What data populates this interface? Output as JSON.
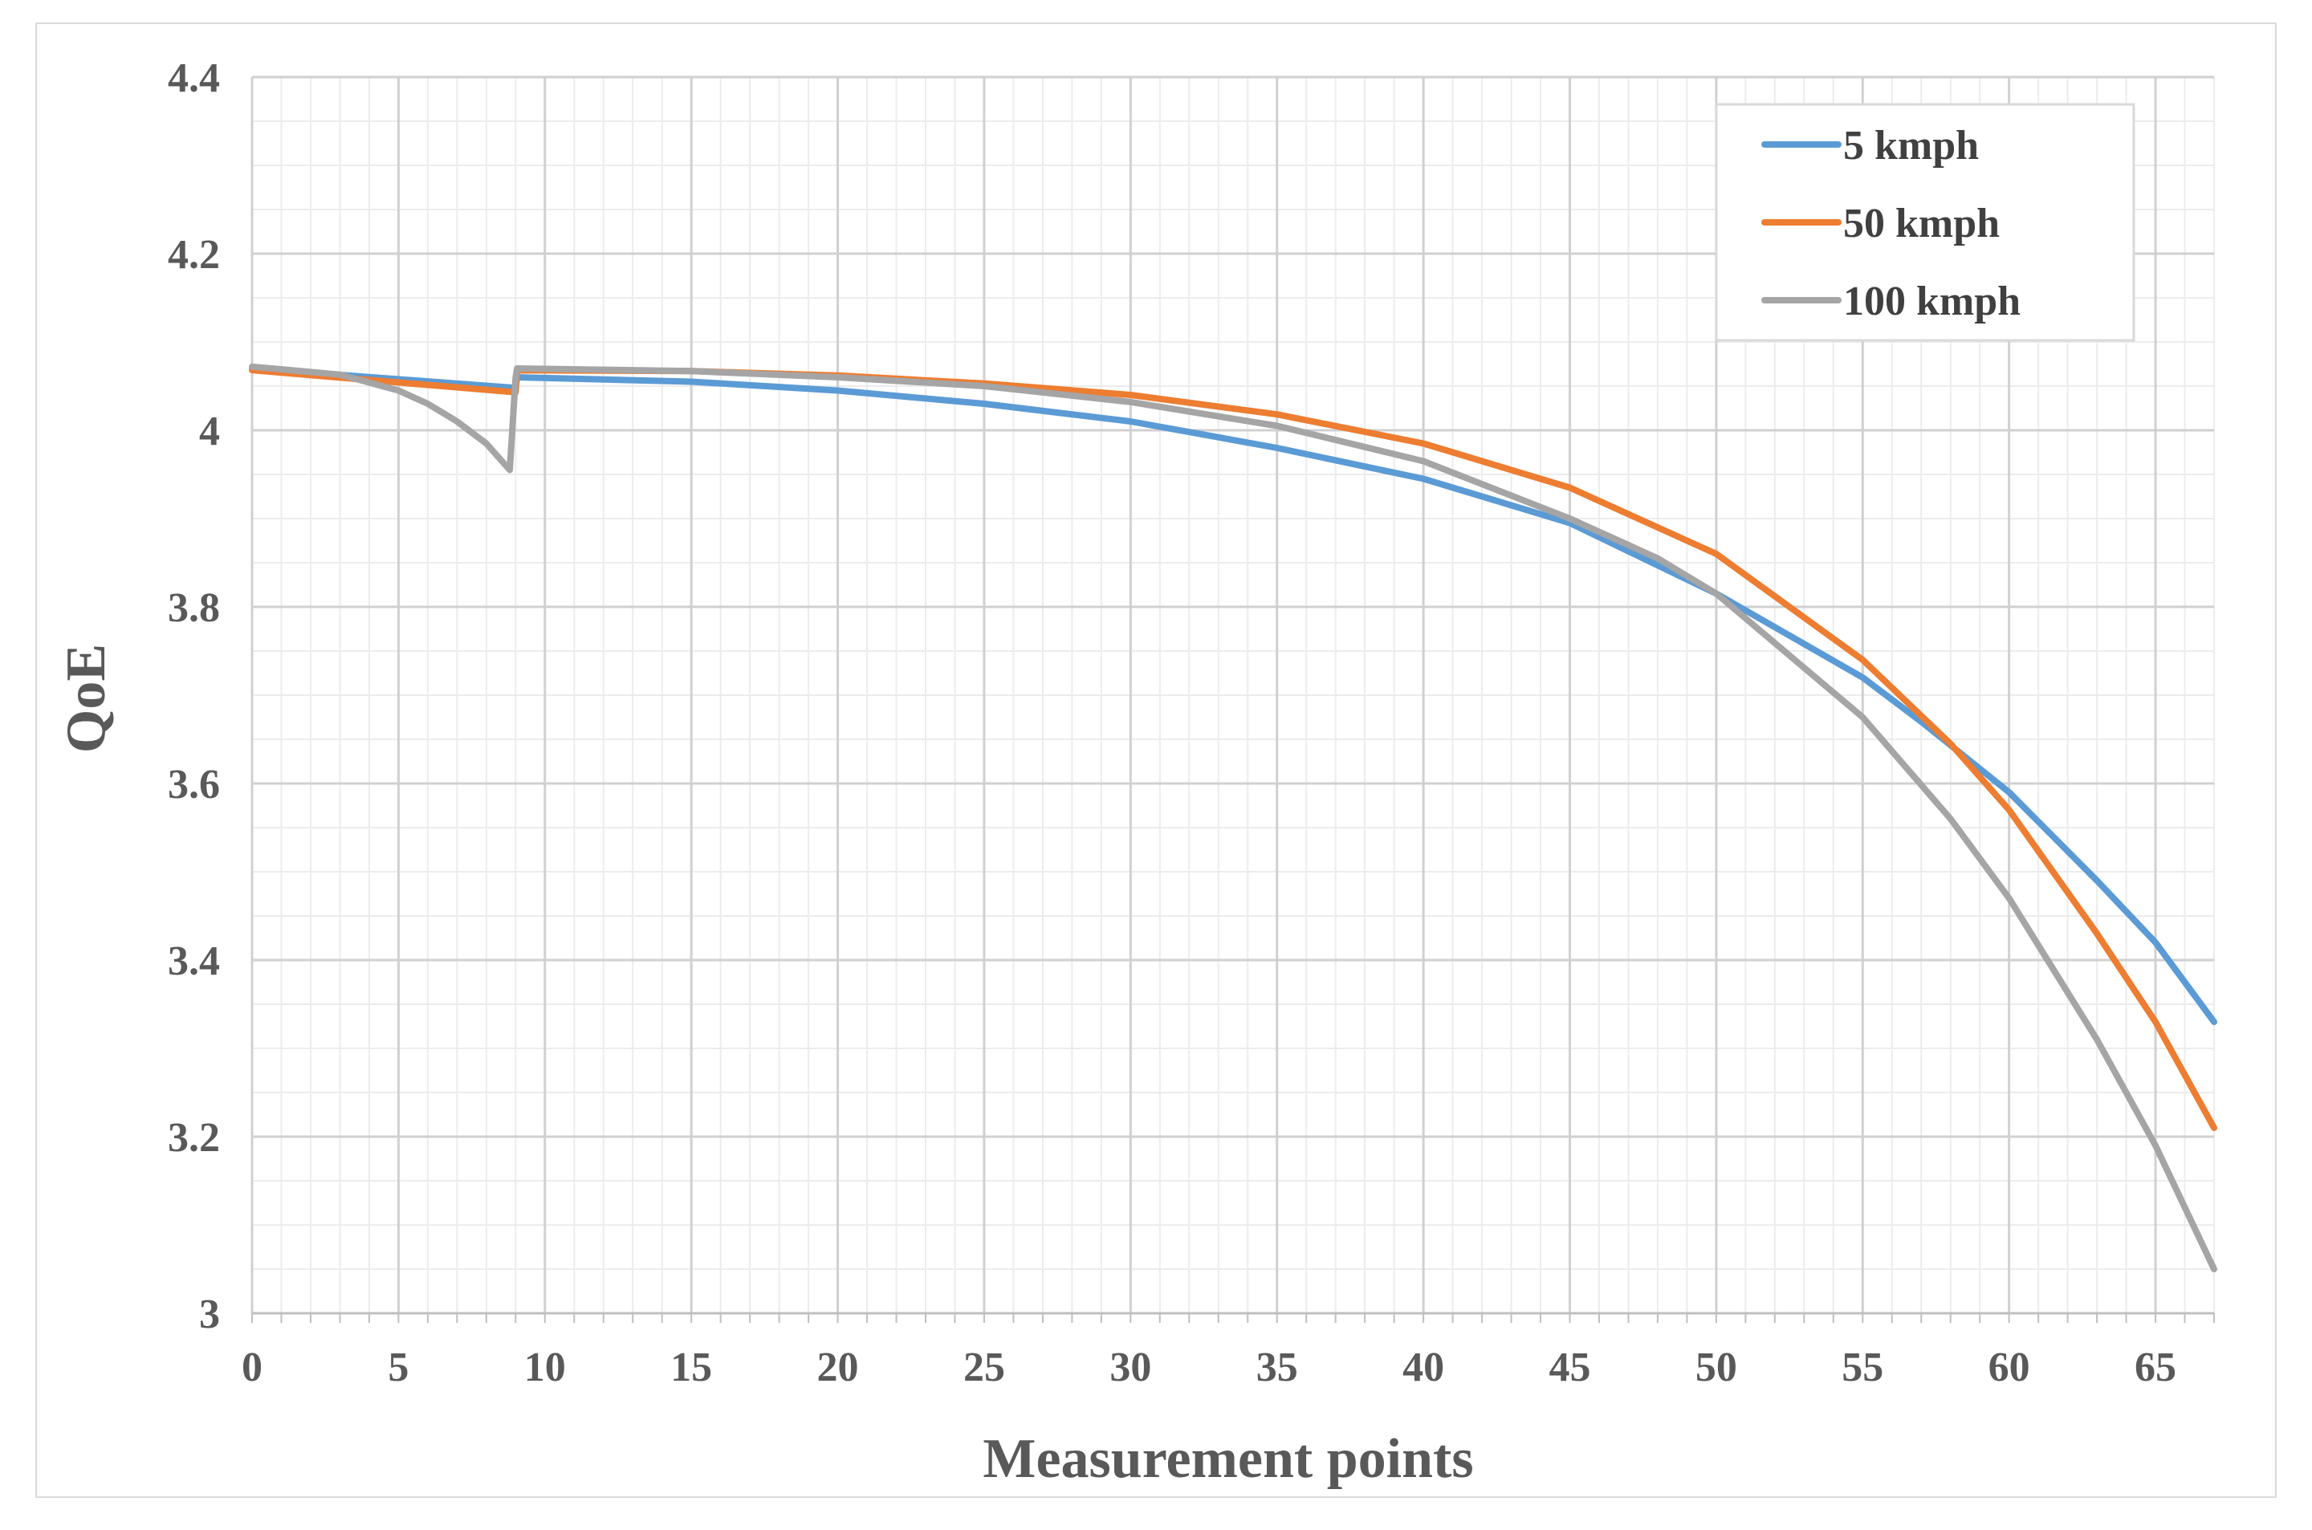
{
  "chart_data": {
    "type": "line",
    "title": "",
    "xlabel": "Measurement points",
    "ylabel": "QoE",
    "xlim": [
      0,
      67
    ],
    "ylim": [
      3,
      4.4
    ],
    "x_ticks": [
      0,
      5,
      10,
      15,
      20,
      25,
      30,
      35,
      40,
      45,
      50,
      55,
      60,
      65
    ],
    "x_tick_labels": [
      "0",
      "5",
      "10",
      "15",
      "20",
      "25",
      "30",
      "35",
      "40",
      "45",
      "50",
      "55",
      "60",
      "65"
    ],
    "y_ticks": [
      3,
      3.2,
      3.4,
      3.6,
      3.8,
      4,
      4.2,
      4.4
    ],
    "y_tick_labels": [
      "3",
      "3.2",
      "3.4",
      "3.6",
      "3.8",
      "4",
      "4.2",
      "4.4"
    ],
    "grid": true,
    "legend_position": "top-right",
    "series": [
      {
        "name": "5 kmph",
        "color": "#5b9bd5",
        "x": [
          0,
          9,
          9.05,
          15,
          20,
          25,
          30,
          35,
          40,
          45,
          50,
          55,
          57,
          60,
          63,
          65,
          67
        ],
        "y": [
          4.07,
          4.048,
          4.06,
          4.055,
          4.045,
          4.03,
          4.01,
          3.98,
          3.945,
          3.895,
          3.815,
          3.72,
          3.67,
          3.59,
          3.49,
          3.42,
          3.33
        ]
      },
      {
        "name": "50 kmph",
        "color": "#ed7d31",
        "x": [
          0,
          9,
          9.05,
          15,
          20,
          25,
          30,
          35,
          40,
          45,
          50,
          55,
          58,
          60,
          63,
          65,
          67
        ],
        "y": [
          4.068,
          4.043,
          4.068,
          4.067,
          4.062,
          4.053,
          4.04,
          4.018,
          3.985,
          3.935,
          3.86,
          3.74,
          3.645,
          3.57,
          3.43,
          3.33,
          3.21
        ]
      },
      {
        "name": "100 kmph",
        "color": "#a5a5a5",
        "x": [
          0,
          3,
          5,
          6,
          7,
          8,
          8.8,
          9,
          9.05,
          15,
          20,
          25,
          30,
          35,
          40,
          45,
          48,
          50,
          55,
          58,
          60,
          63,
          65,
          67
        ],
        "y": [
          4.072,
          4.063,
          4.045,
          4.03,
          4.01,
          3.985,
          3.955,
          4.06,
          4.07,
          4.067,
          4.06,
          4.05,
          4.032,
          4.005,
          3.965,
          3.9,
          3.855,
          3.815,
          3.675,
          3.56,
          3.47,
          3.31,
          3.19,
          3.05
        ]
      }
    ]
  }
}
